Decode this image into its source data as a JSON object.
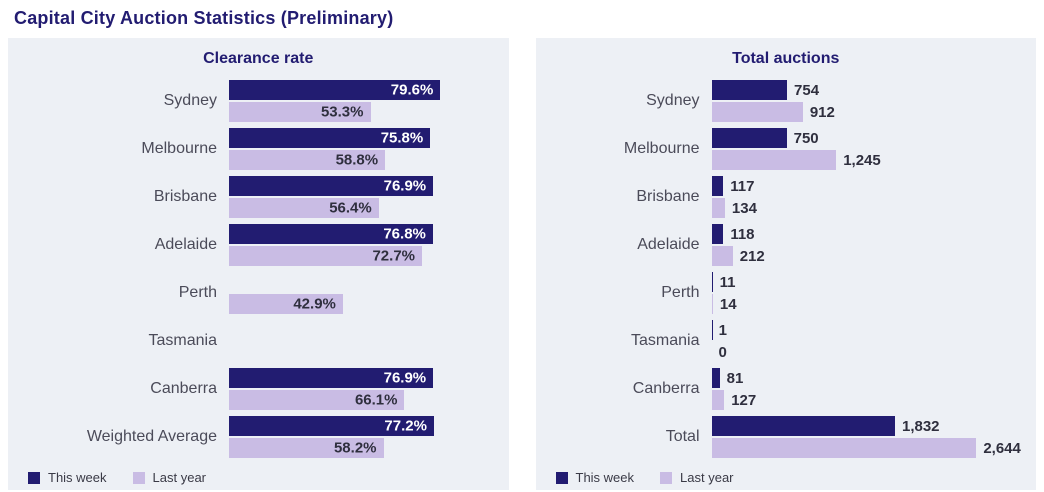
{
  "page_title": "Capital City Auction Statistics (Preliminary)",
  "colors": {
    "this_week": "#221c71",
    "last_year": "#c9bce4",
    "panel_bg": "#edf0f5",
    "title": "#221c71"
  },
  "legend": {
    "this_week": "This week",
    "last_year": "Last year"
  },
  "chart_data": [
    {
      "type": "bar",
      "orientation": "horizontal",
      "title": "Clearance rate",
      "categories": [
        "Sydney",
        "Melbourne",
        "Brisbane",
        "Adelaide",
        "Perth",
        "Tasmania",
        "Canberra",
        "Weighted Average"
      ],
      "series": [
        {
          "name": "This week",
          "values": [
            79.6,
            75.8,
            76.9,
            76.8,
            null,
            null,
            76.9,
            77.2
          ]
        },
        {
          "name": "Last year",
          "values": [
            53.3,
            58.8,
            56.4,
            72.7,
            42.9,
            null,
            66.1,
            58.2
          ]
        }
      ],
      "value_suffix": "%",
      "decimals": 1,
      "xlim": [
        0,
        100
      ],
      "label_position": "inside",
      "legend_position": "bottom-left",
      "grid": false
    },
    {
      "type": "bar",
      "orientation": "horizontal",
      "title": "Total auctions",
      "categories": [
        "Sydney",
        "Melbourne",
        "Brisbane",
        "Adelaide",
        "Perth",
        "Tasmania",
        "Canberra",
        "Total"
      ],
      "series": [
        {
          "name": "This week",
          "values": [
            754,
            750,
            117,
            118,
            11,
            1,
            81,
            1832
          ]
        },
        {
          "name": "Last year",
          "values": [
            912,
            1245,
            134,
            212,
            14,
            0,
            127,
            2644
          ]
        }
      ],
      "value_format": "thousands",
      "xlim": [
        0,
        3100
      ],
      "label_position": "outside",
      "legend_position": "bottom-left",
      "grid": false
    }
  ]
}
